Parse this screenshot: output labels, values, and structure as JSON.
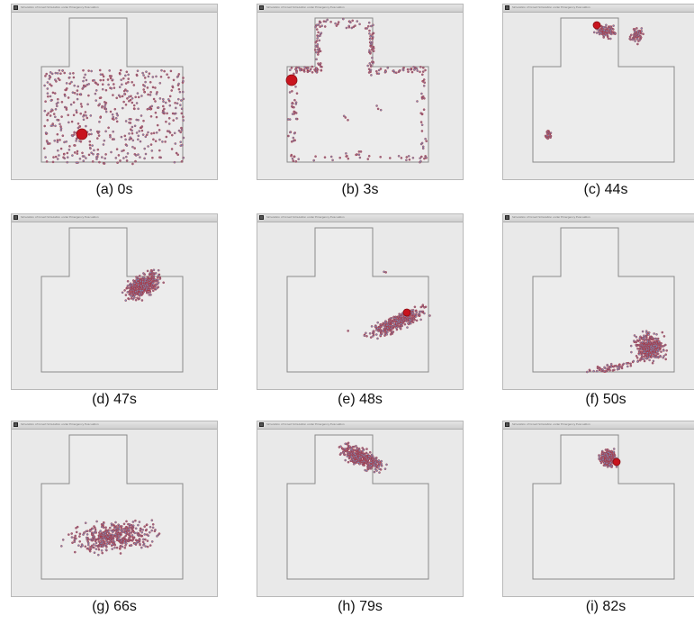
{
  "window_title": "Simulation of Crowd Simulation under Emergency Evacuation",
  "colors": {
    "agent_fill": "#7a8fb8",
    "agent_outline": "#b0222a",
    "leader": "#c8141e",
    "walls": "#8a8a8a",
    "floor": "#ececec"
  },
  "panels": [
    {
      "id": "a",
      "caption": "(a) 0s"
    },
    {
      "id": "b",
      "caption": "(b) 3s"
    },
    {
      "id": "c",
      "caption": "(c) 44s"
    },
    {
      "id": "d",
      "caption": "(d) 47s"
    },
    {
      "id": "e",
      "caption": "(e) 48s"
    },
    {
      "id": "f",
      "caption": "(f) 50s"
    },
    {
      "id": "g",
      "caption": "(g) 66s"
    },
    {
      "id": "h",
      "caption": "(h) 79s"
    },
    {
      "id": "i",
      "caption": "(i) 82s"
    }
  ]
}
